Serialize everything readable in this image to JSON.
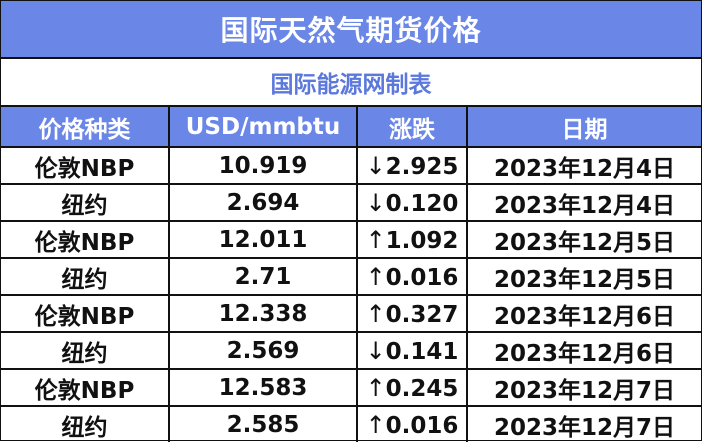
{
  "title": "国际天然气期货价格",
  "subtitle": "国际能源网制表",
  "headers": [
    "价格种类",
    "USD/mmbtu",
    "涨跌",
    "日期"
  ],
  "rows": [
    {
      "kind": "伦敦NBP",
      "price": "10.919",
      "arrow": "↓",
      "change": "2.925",
      "date": "2023年12月4日"
    },
    {
      "kind": "纽约",
      "price": "2.694",
      "arrow": "↓",
      "change": "0.120",
      "date": "2023年12月4日"
    },
    {
      "kind": "伦敦NBP",
      "price": "12.011",
      "arrow": "↑",
      "change": "1.092",
      "date": "2023年12月5日"
    },
    {
      "kind": "纽约",
      "price": "2.71",
      "arrow": "↑",
      "change": "0.016",
      "date": "2023年12月5日"
    },
    {
      "kind": "伦敦NBP",
      "price": "12.338",
      "arrow": "↑",
      "change": "0.327",
      "date": "2023年12月6日"
    },
    {
      "kind": "纽约",
      "price": "2.569",
      "arrow": "↓",
      "change": "0.141",
      "date": "2023年12月6日"
    },
    {
      "kind": "伦敦NBP",
      "price": "12.583",
      "arrow": "↑",
      "change": "0.245",
      "date": "2023年12月7日"
    },
    {
      "kind": "纽约",
      "price": "2.585",
      "arrow": "↑",
      "change": "0.016",
      "date": "2023年12月7日"
    }
  ],
  "colors": {
    "header_bg": "#6a86e6",
    "subtitle_text": "#5b78dc"
  }
}
